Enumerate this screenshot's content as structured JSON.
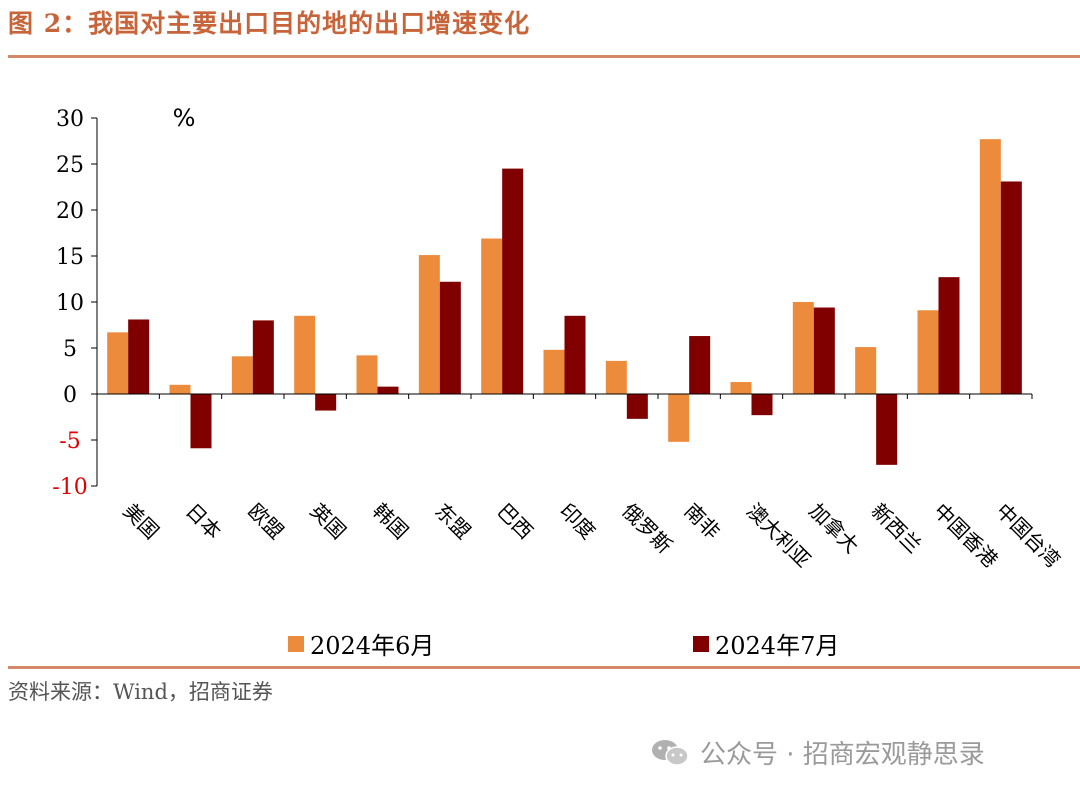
{
  "header": {
    "title": "图 2：我国对主要出口目的地的出口增速变化"
  },
  "footer": {
    "source": "资料来源：Wind，招商证券",
    "watermark": "公众号 · 招商宏观静思录"
  },
  "colors": {
    "june": "#ed8b3d",
    "july": "#800000",
    "accent": "#c8643a",
    "negative_tick": "#e00000"
  },
  "chart_data": {
    "type": "bar",
    "unit_label": "%",
    "categories": [
      "美国",
      "日本",
      "欧盟",
      "英国",
      "韩国",
      "东盟",
      "巴西",
      "印度",
      "俄罗斯",
      "南非",
      "澳大利亚",
      "加拿大",
      "新西兰",
      "中国香港",
      "中国台湾"
    ],
    "series": [
      {
        "name": "2024年6月",
        "values": [
          6.7,
          1.0,
          4.1,
          8.5,
          4.2,
          15.1,
          16.9,
          4.8,
          3.6,
          -5.2,
          1.3,
          10.0,
          5.1,
          9.1,
          27.7
        ]
      },
      {
        "name": "2024年7月",
        "values": [
          8.1,
          -5.9,
          8.0,
          -1.8,
          0.8,
          12.2,
          24.5,
          8.5,
          -2.7,
          6.3,
          -2.3,
          9.4,
          -7.7,
          12.7,
          23.1
        ]
      }
    ],
    "ylim": [
      -10,
      30
    ],
    "yticks": [
      "30",
      "25",
      "20",
      "15",
      "10",
      "5",
      "0",
      "-5",
      "-10"
    ],
    "grid": false,
    "legend_position": "bottom"
  }
}
